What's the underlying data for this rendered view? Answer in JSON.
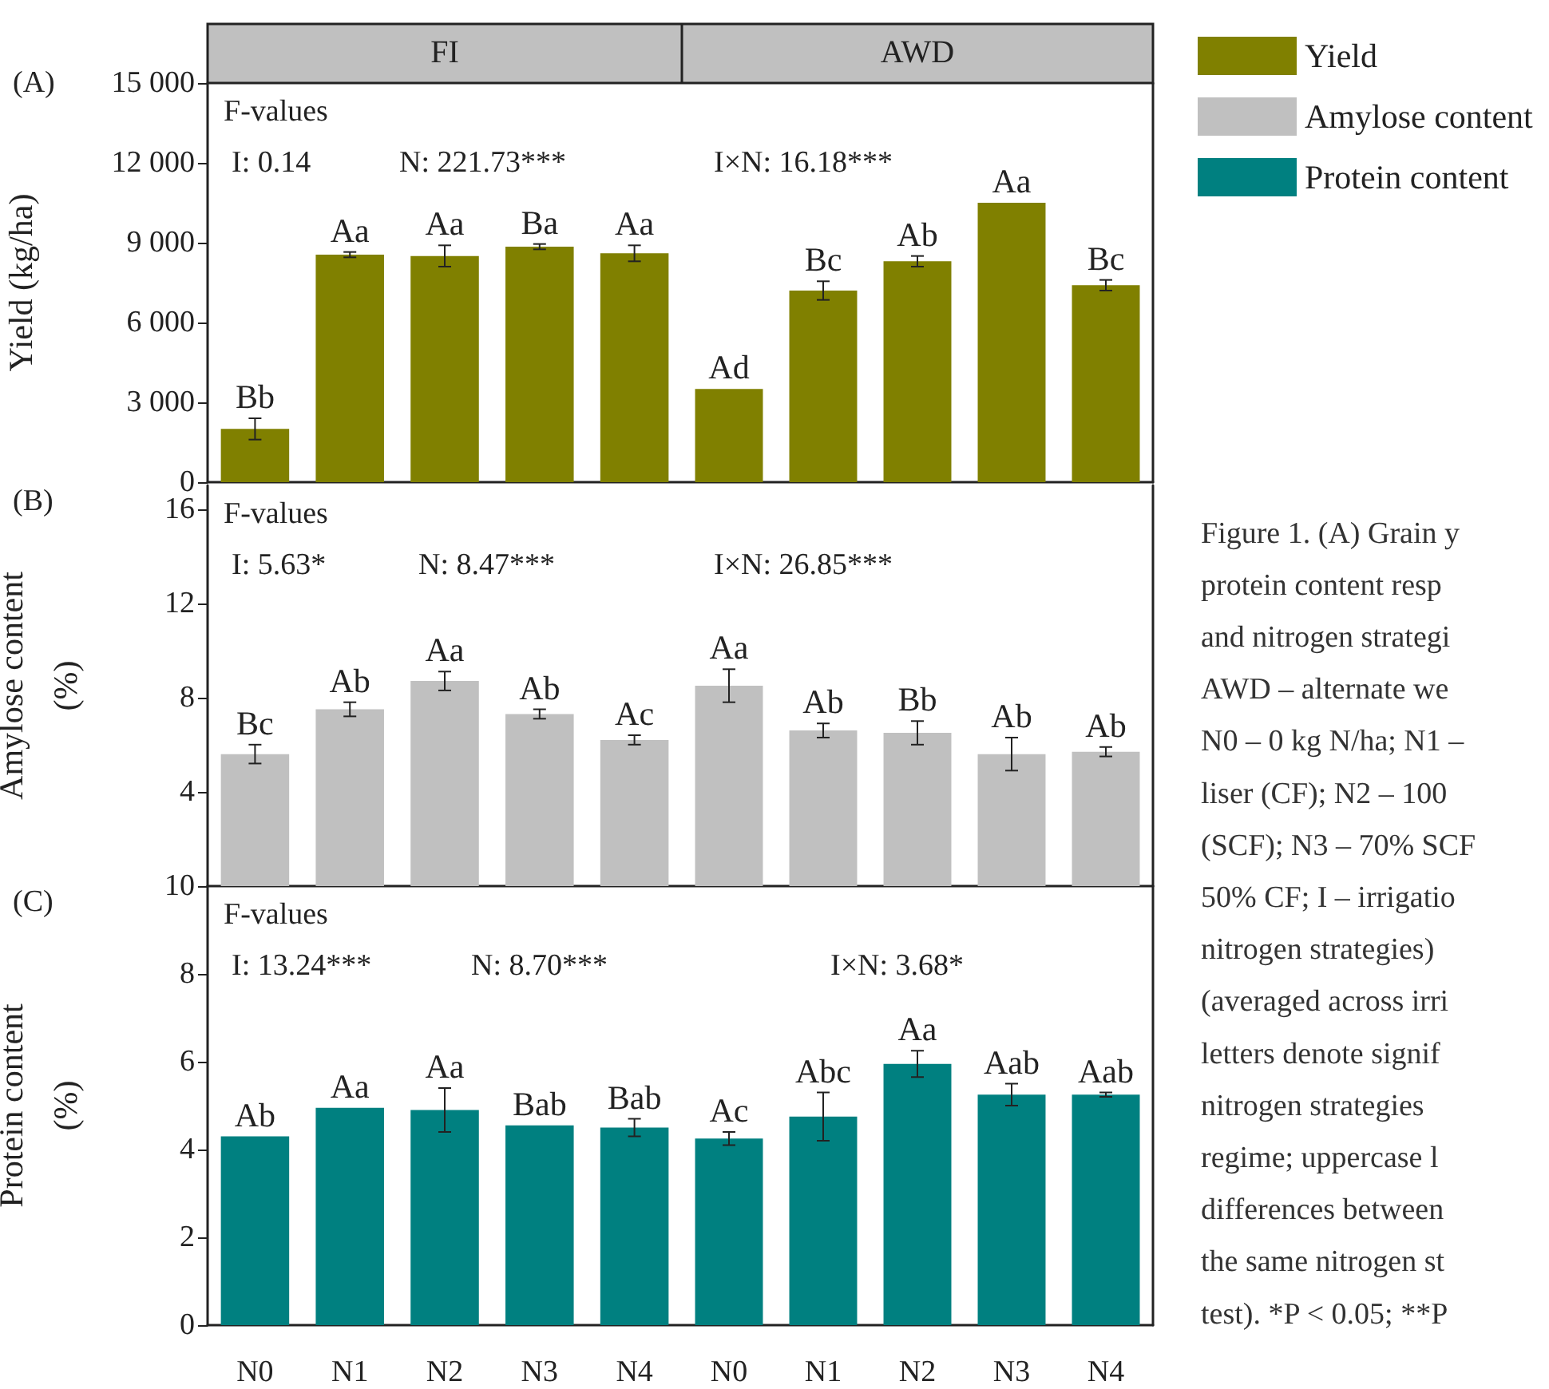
{
  "chart_data": [
    {
      "type": "bar",
      "title": "FI",
      "ylabel": "Yield (kg/ha)",
      "categories": [
        "N0",
        "N1",
        "N2",
        "N3",
        "N4"
      ],
      "series": [
        {
          "color": "#808000",
          "values": [
            2000,
            8550,
            8500,
            8850,
            8600
          ],
          "errors": [
            400,
            100,
            400,
            100,
            300
          ]
        }
      ],
      "ylim": [
        0,
        15000
      ],
      "yticks": [
        0,
        {
          "value": 3000,
          "label": "3 000"
        },
        {
          "value": 6000,
          "label": "6 000"
        },
        {
          "value": 9000,
          "label": "9 000"
        },
        {
          "value": 12000,
          "label": "12 000"
        },
        {
          "value": 15000,
          "label": "15 000"
        }
      ],
      "tick_labels": "y",
      "annotations": [
        "(A)",
        "F-values",
        "I: 0.14",
        "N: 221.73***",
        {
          "text": "Bb",
          "x": "N0",
          "y": 2000
        },
        {
          "text": "Aa",
          "x": "N1",
          "y": 8550
        },
        {
          "text": "Aa",
          "x": "N2",
          "y": 8500
        },
        {
          "text": "Ba",
          "x": "N3",
          "y": 8850
        },
        {
          "text": "Aa",
          "x": "N4",
          "y": 8600
        }
      ]
    },
    {
      "type": "bar",
      "title": "AWD",
      "categories": [
        "N0",
        "N1",
        "N2",
        "N3",
        "N4"
      ],
      "series": [
        {
          "name": "Yield",
          "color": "#808000",
          "values": [
            3500,
            7200,
            8300,
            10500,
            7400
          ],
          "errors": [
            null,
            350,
            200,
            null,
            200
          ]
        }
      ],
      "ylim": [
        0,
        15000
      ],
      "tick_labels": false,
      "legend": "right",
      "annotations": [
        "I×N: 16.18***",
        {
          "text": "Ad",
          "x": "N0",
          "y": 3500
        },
        {
          "text": "Bc",
          "x": "N1",
          "y": 7200
        },
        {
          "text": "Ab",
          "x": "N2",
          "y": 8300
        },
        {
          "text": "Aa",
          "x": "N3",
          "y": 10500
        },
        {
          "text": "Bc",
          "x": "N4",
          "y": 7400
        }
      ]
    },
    {
      "type": "bar",
      "ylabel": "Amylose content (%)",
      "categories": [
        "N0",
        "N1",
        "N2",
        "N3",
        "N4"
      ],
      "series": [
        {
          "color": "#c0c0c0",
          "values": [
            5.6,
            7.5,
            8.7,
            7.3,
            6.2
          ],
          "errors": [
            0.4,
            0.3,
            0.4,
            0.2,
            0.2
          ]
        }
      ],
      "ylim": [
        0,
        17
      ],
      "yticks": [
        {
          "value": 0,
          "label": null
        },
        4,
        8,
        12,
        16
      ],
      "tick_labels": "y",
      "annotations": [
        "(B)",
        "F-values",
        "I: 5.63*",
        "N: 8.47***",
        {
          "text": "Bc",
          "x": "N0",
          "y": 5.6
        },
        {
          "text": "Ab",
          "x": "N1",
          "y": 7.5
        },
        {
          "text": "Aa",
          "x": "N2",
          "y": 8.7
        },
        {
          "text": "Ab",
          "x": "N3",
          "y": 7.3
        },
        {
          "text": "Ac",
          "x": "N4",
          "y": 6.2
        }
      ]
    },
    {
      "type": "bar",
      "categories": [
        "N0",
        "N1",
        "N2",
        "N3",
        "N4"
      ],
      "series": [
        {
          "name": "Amylose content",
          "color": "#c0c0c0",
          "values": [
            8.5,
            6.6,
            6.5,
            5.6,
            5.7
          ],
          "errors": [
            0.7,
            0.3,
            0.5,
            0.7,
            0.2
          ]
        }
      ],
      "ylim": [
        0,
        17
      ],
      "tick_labels": false,
      "legend": "right",
      "annotations": [
        "I×N: 26.85***",
        {
          "text": "Aa",
          "x": "N0",
          "y": 8.5
        },
        {
          "text": "Ab",
          "x": "N1",
          "y": 6.6
        },
        {
          "text": "Bb",
          "x": "N2",
          "y": 6.5
        },
        {
          "text": "Ab",
          "x": "N3",
          "y": 5.6
        },
        {
          "text": "Ab",
          "x": "N4",
          "y": 5.7
        }
      ]
    },
    {
      "type": "bar",
      "ylabel": "Protein content (%)",
      "categories": [
        "N0",
        "N1",
        "N2",
        "N3",
        "N4"
      ],
      "series": [
        {
          "color": "#008080",
          "values": [
            4.3,
            4.95,
            4.9,
            4.55,
            4.5
          ],
          "errors": [
            null,
            null,
            0.5,
            null,
            0.2
          ]
        }
      ],
      "ylim": [
        0,
        10
      ],
      "yticks": [
        0,
        2,
        4,
        6,
        8,
        10
      ],
      "annotations": [
        "(C)",
        "F-values",
        "I: 13.24***",
        "N: 8.70***",
        {
          "text": "Ab",
          "x": "N0",
          "y": 4.3
        },
        {
          "text": "Aa",
          "x": "N1",
          "y": 4.95
        },
        {
          "text": "Aa",
          "x": "N2",
          "y": 4.9
        },
        {
          "text": "Bab",
          "x": "N3",
          "y": 4.55
        },
        {
          "text": "Bab",
          "x": "N4",
          "y": 4.5
        }
      ]
    },
    {
      "type": "bar",
      "categories": [
        "N0",
        "N1",
        "N2",
        "N3",
        "N4"
      ],
      "series": [
        {
          "name": "Protein content",
          "color": "#008080",
          "values": [
            4.25,
            4.75,
            5.95,
            5.25,
            5.25
          ],
          "errors": [
            0.15,
            0.55,
            0.3,
            0.25,
            0.05
          ]
        }
      ],
      "ylim": [
        0,
        10
      ],
      "tick_labels": "x",
      "legend": "right",
      "annotations": [
        "I×N: 3.68*",
        "Figure 1. (A) Grain y\nprotein content resp\nand nitrogen strategi\nAWD – alternate we\nN0 – 0 kg N/ha; N1 –\nliser (CF); N2 – 100\n(SCF); N3 – 70% SCF\n50% CF; I – irrigatio\nnitrogen strategies)\n(averaged across irri\nletters denote signif\nnitrogen strategies\nregime; uppercase l\ndifferences between\nthe same nitrogen st\ntest). *P < 0.05; **P",
        {
          "text": "Ac",
          "x": "N0",
          "y": 4.25
        },
        {
          "text": "Abc",
          "x": "N1",
          "y": 4.75
        },
        {
          "text": "Aa",
          "x": "N2",
          "y": 5.95
        },
        {
          "text": "Aab",
          "x": "N3",
          "y": 5.25
        },
        {
          "text": "Aab",
          "x": "N4",
          "y": 5.25
        }
      ]
    }
  ]
}
